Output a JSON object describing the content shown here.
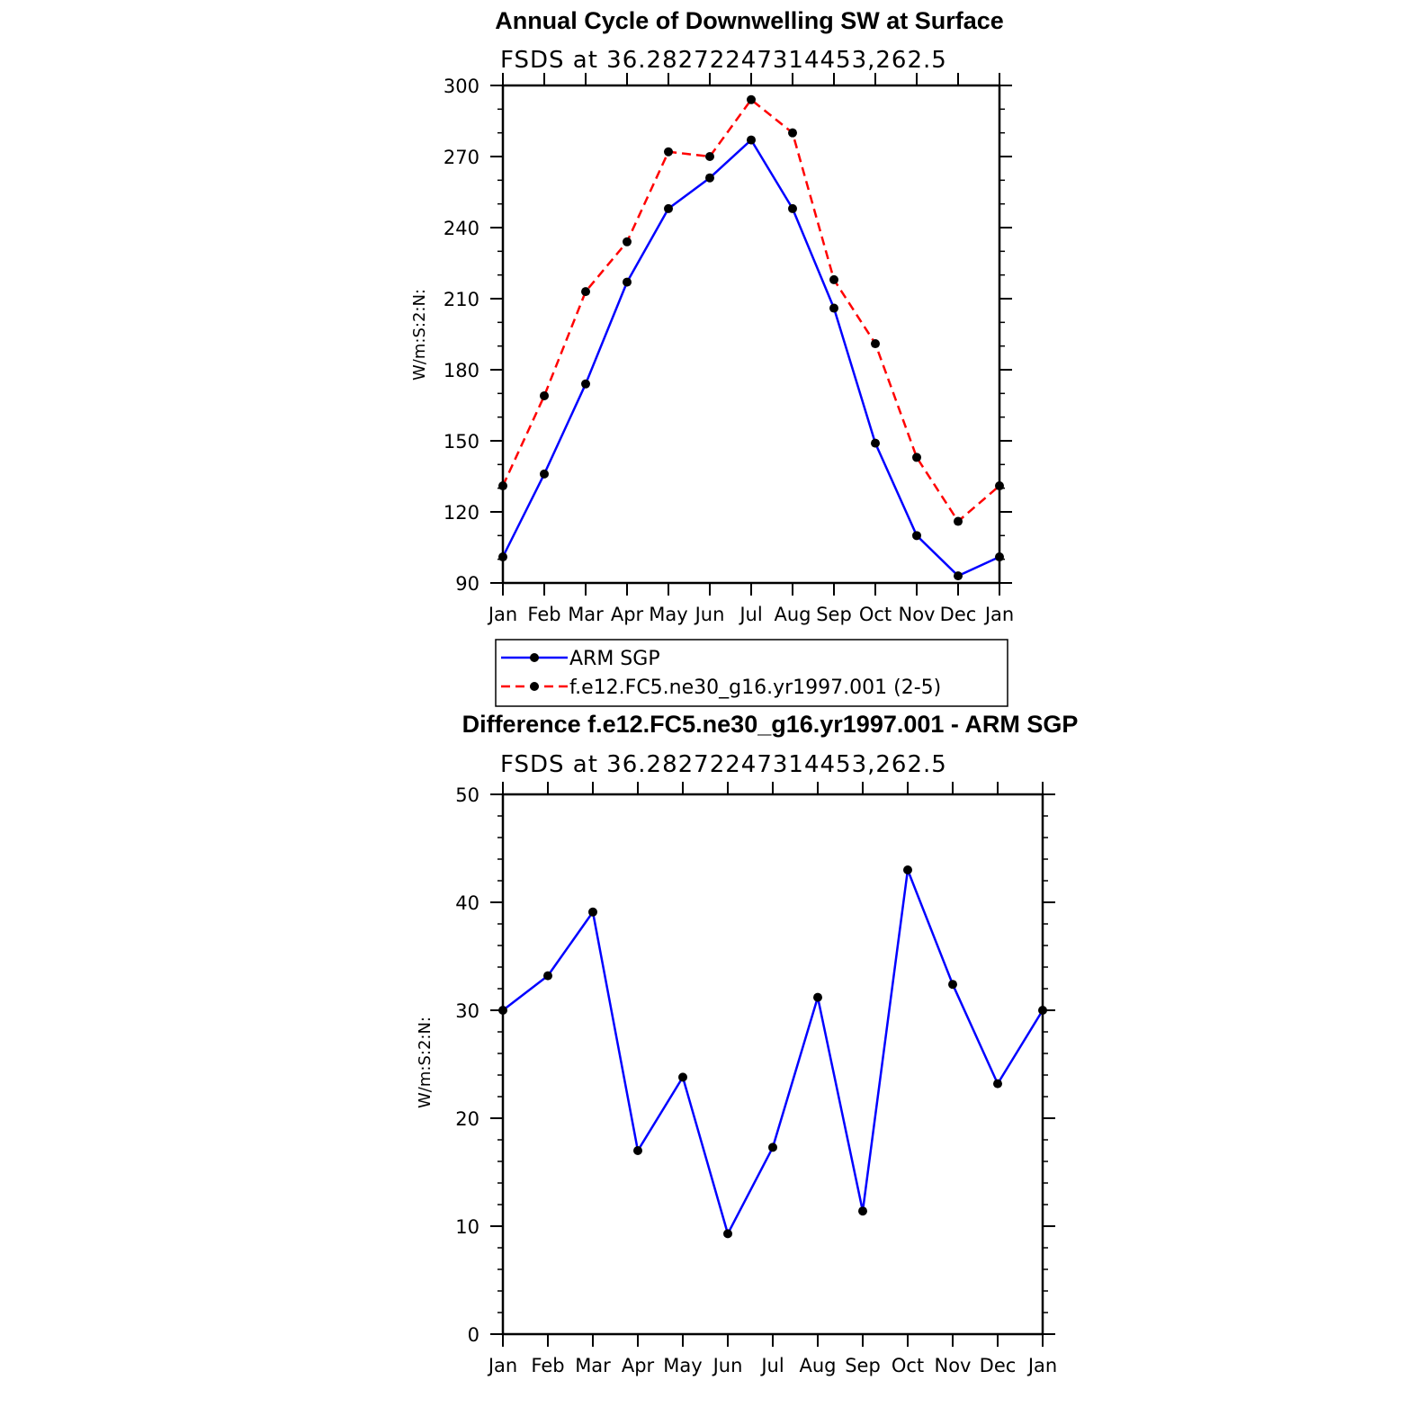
{
  "chart_data": [
    {
      "type": "line",
      "title": "Annual Cycle of Downwelling SW at Surface",
      "subtitle": "FSDS at 36.28272247314453,262.5",
      "ylabel": "W/m:S:2:N:",
      "xlabel": "",
      "categories": [
        "Jan",
        "Feb",
        "Mar",
        "Apr",
        "May",
        "Jun",
        "Jul",
        "Aug",
        "Sep",
        "Oct",
        "Nov",
        "Dec",
        "Jan"
      ],
      "ylim": [
        90,
        300
      ],
      "yticks": [
        90,
        120,
        150,
        180,
        210,
        240,
        270,
        300
      ],
      "series": [
        {
          "name": "ARM SGP",
          "color": "#0000ff",
          "dash": "solid",
          "values": [
            101,
            136,
            174,
            217,
            248,
            261,
            277,
            248,
            206,
            149,
            110,
            93,
            101
          ]
        },
        {
          "name": "f.e12.FC5.ne30_g16.yr1997.001 (2-5)",
          "color": "#ff0000",
          "dash": "dashed",
          "values": [
            131,
            169,
            213,
            234,
            272,
            270,
            294,
            280,
            218,
            191,
            143,
            116,
            131
          ]
        }
      ],
      "legend": "below"
    },
    {
      "type": "line",
      "title": "Difference f.e12.FC5.ne30_g16.yr1997.001 - ARM SGP",
      "subtitle": "FSDS at 36.28272247314453,262.5",
      "ylabel": "W/m:S:2:N:",
      "xlabel": "",
      "categories": [
        "Jan",
        "Feb",
        "Mar",
        "Apr",
        "May",
        "Jun",
        "Jul",
        "Aug",
        "Sep",
        "Oct",
        "Nov",
        "Dec",
        "Jan"
      ],
      "ylim": [
        0,
        50
      ],
      "yticks": [
        0,
        10,
        20,
        30,
        40,
        50
      ],
      "series": [
        {
          "color": "#0000ff",
          "dash": "solid",
          "values": [
            30,
            33.2,
            39.1,
            17,
            23.8,
            9.3,
            17.3,
            31.2,
            11.4,
            43,
            32.4,
            23.2,
            30
          ]
        }
      ]
    }
  ]
}
